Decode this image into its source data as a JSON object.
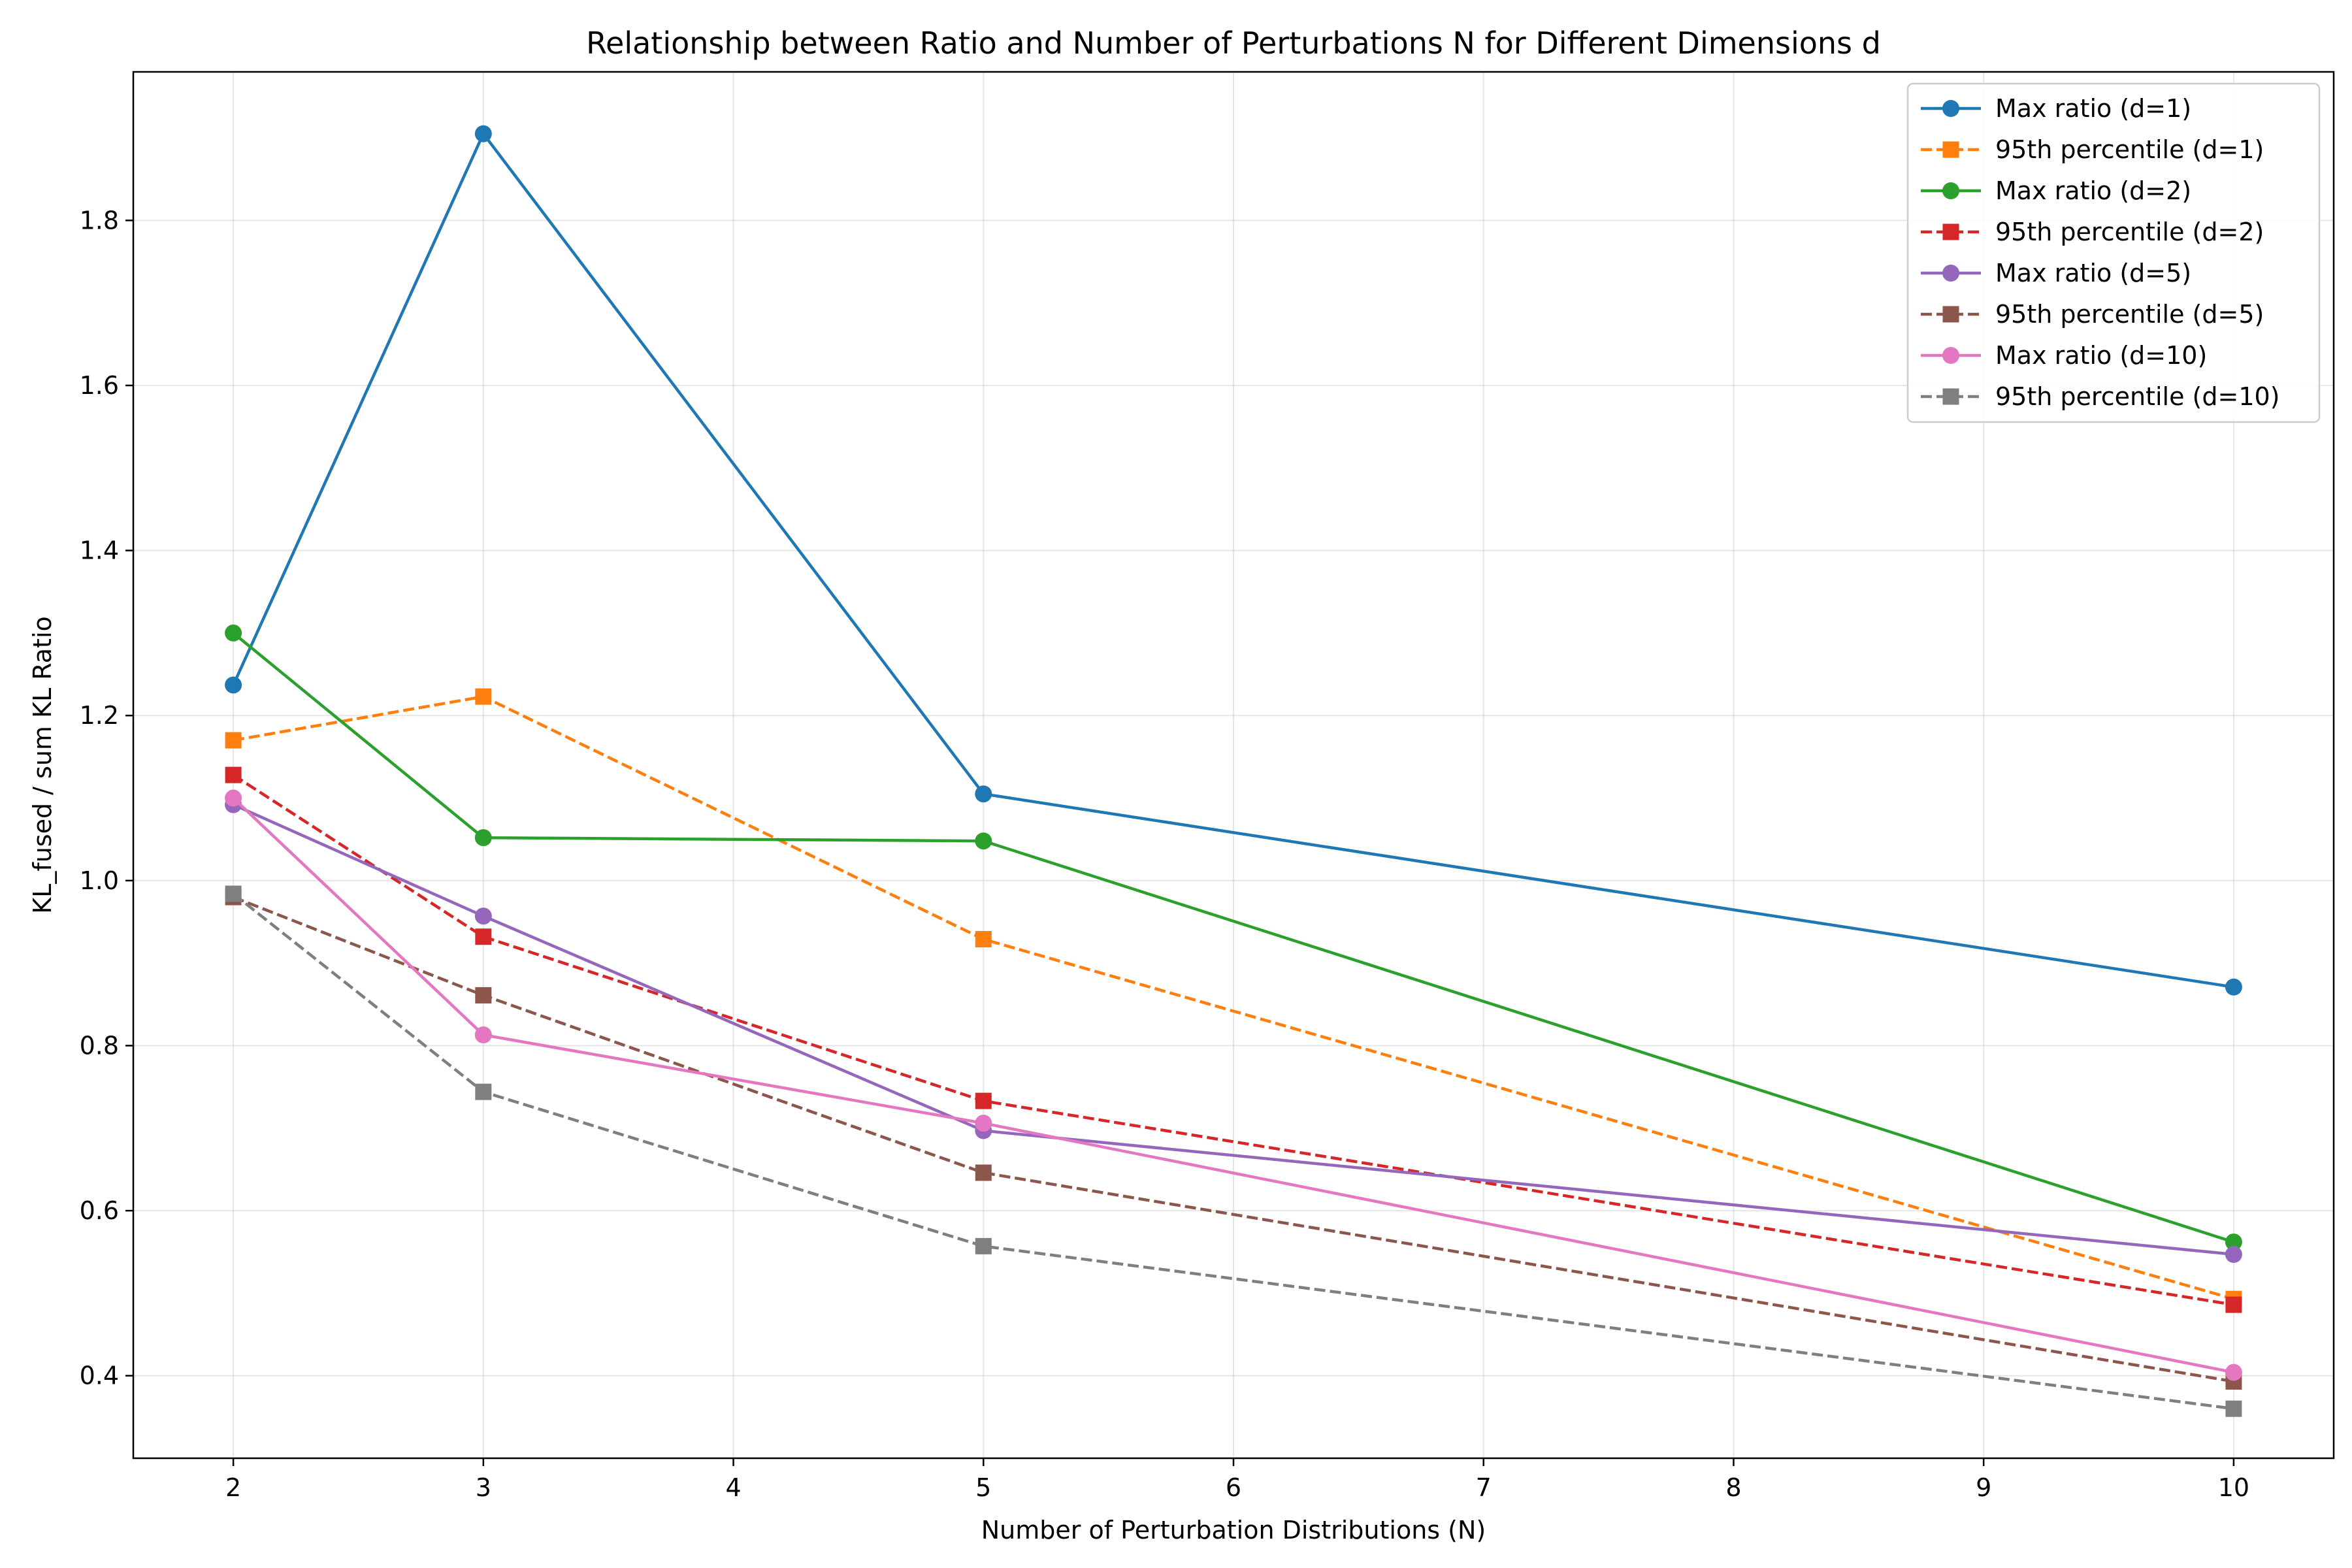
{
  "chart_data": {
    "type": "line",
    "title": "Relationship between Ratio and Number of Perturbations N for Different Dimensions d",
    "xlabel": "Number of Perturbation Distributions (N)",
    "ylabel": "KL_fused / sum KL Ratio",
    "xlim": [
      1.6,
      10.4
    ],
    "ylim": [
      0.3,
      1.98
    ],
    "xticks": [
      2,
      3,
      4,
      5,
      6,
      7,
      8,
      9,
      10
    ],
    "yticks": [
      0.4,
      0.6,
      0.8,
      1.0,
      1.2,
      1.4,
      1.6,
      1.8
    ],
    "grid": true,
    "legend_position": "top-right",
    "x": [
      2,
      3,
      5,
      10
    ],
    "series": [
      {
        "name": "Max ratio (d=1)",
        "color": "#1f77b4",
        "dash": "solid",
        "marker": "circle",
        "values": [
          1.237,
          1.905,
          1.105,
          0.871
        ]
      },
      {
        "name": "95th percentile (d=1)",
        "color": "#ff7f0e",
        "dash": "dashed",
        "marker": "square",
        "values": [
          1.17,
          1.223,
          0.929,
          0.493
        ]
      },
      {
        "name": "Max ratio (d=2)",
        "color": "#2ca02c",
        "dash": "solid",
        "marker": "circle",
        "values": [
          1.3,
          1.052,
          1.048,
          0.562
        ]
      },
      {
        "name": "95th percentile (d=2)",
        "color": "#d62728",
        "dash": "dashed",
        "marker": "square",
        "values": [
          1.128,
          0.932,
          0.733,
          0.486
        ]
      },
      {
        "name": "Max ratio (d=5)",
        "color": "#9467bd",
        "dash": "solid",
        "marker": "circle",
        "values": [
          1.092,
          0.957,
          0.697,
          0.547
        ]
      },
      {
        "name": "95th percentile (d=5)",
        "color": "#8c564b",
        "dash": "dashed",
        "marker": "square",
        "values": [
          0.98,
          0.861,
          0.646,
          0.393
        ]
      },
      {
        "name": "Max ratio (d=10)",
        "color": "#e377c2",
        "dash": "solid",
        "marker": "circle",
        "values": [
          1.1,
          0.813,
          0.706,
          0.404
        ]
      },
      {
        "name": "95th percentile (d=10)",
        "color": "#7f7f7f",
        "dash": "dashed",
        "marker": "square",
        "values": [
          0.984,
          0.744,
          0.557,
          0.36
        ]
      }
    ]
  }
}
